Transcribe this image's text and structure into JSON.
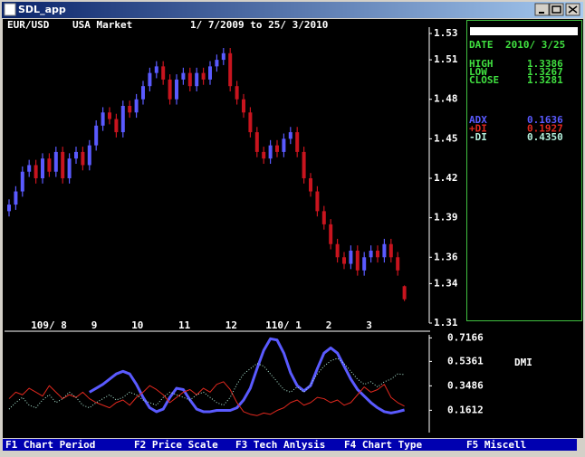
{
  "window": {
    "title": "SDL_app"
  },
  "header": {
    "symbol": "EUR/USD",
    "market": "USA Market",
    "range": "1/ 7/2009 to 25/ 3/2010"
  },
  "info_panel": {
    "date_label": "DATE",
    "date": "2010/ 3/25",
    "prices": [
      {
        "label": "HIGH",
        "value": "1.3386"
      },
      {
        "label": "LOW",
        "value": "1.3267"
      },
      {
        "label": "CLOSE",
        "value": "1.3281"
      }
    ],
    "indicator_values": [
      "0.1636",
      "0.1927",
      "0.4350"
    ]
  },
  "menu": [
    "F1 Chart Period",
    "F2 Price Scale",
    "F3 Tech Anlysis",
    "F4 Chart Type",
    "F5 Miscell"
  ],
  "chart_data": [
    {
      "type": "candlestick",
      "categories": [
        null,
        null,
        null,
        "109/ 8",
        null,
        null,
        null,
        null,
        null,
        null,
        null,
        null,
        "9",
        null,
        null,
        null,
        null,
        null,
        "10",
        null,
        null,
        null,
        null,
        null,
        null,
        "11",
        null,
        null,
        null,
        null,
        null,
        null,
        "12",
        null,
        null,
        null,
        null,
        null,
        "110/ 1",
        null,
        null,
        null,
        null,
        null,
        null,
        null,
        null,
        "2",
        null,
        null,
        null,
        null,
        null,
        "3",
        null,
        null,
        null,
        null,
        null,
        null
      ],
      "open": [
        1.395,
        1.4,
        1.41,
        1.425,
        1.43,
        1.42,
        1.435,
        1.425,
        1.44,
        1.42,
        1.435,
        1.44,
        1.43,
        1.445,
        1.46,
        1.47,
        1.465,
        1.455,
        1.475,
        1.47,
        1.48,
        1.49,
        1.5,
        1.505,
        1.495,
        1.48,
        1.495,
        1.5,
        1.49,
        1.5,
        1.495,
        1.505,
        1.51,
        1.515,
        1.49,
        1.48,
        1.47,
        1.455,
        1.44,
        1.435,
        1.445,
        1.44,
        1.45,
        1.455,
        1.44,
        1.42,
        1.41,
        1.395,
        1.385,
        1.37,
        1.36,
        1.355,
        1.365,
        1.35,
        1.36,
        1.365,
        1.36,
        1.37,
        1.36,
        1.338
      ],
      "high": [
        1.404,
        1.414,
        1.429,
        1.434,
        1.434,
        1.439,
        1.439,
        1.444,
        1.444,
        1.439,
        1.444,
        1.444,
        1.449,
        1.464,
        1.474,
        1.474,
        1.469,
        1.479,
        1.479,
        1.484,
        1.494,
        1.504,
        1.509,
        1.509,
        1.499,
        1.499,
        1.504,
        1.504,
        1.504,
        1.504,
        1.509,
        1.514,
        1.519,
        1.519,
        1.494,
        1.484,
        1.474,
        1.459,
        1.444,
        1.449,
        1.449,
        1.454,
        1.459,
        1.459,
        1.444,
        1.424,
        1.414,
        1.399,
        1.389,
        1.374,
        1.364,
        1.369,
        1.369,
        1.364,
        1.369,
        1.369,
        1.374,
        1.374,
        1.364,
        1.3386
      ],
      "low": [
        1.391,
        1.396,
        1.406,
        1.421,
        1.416,
        1.416,
        1.421,
        1.421,
        1.416,
        1.416,
        1.431,
        1.426,
        1.426,
        1.441,
        1.456,
        1.461,
        1.451,
        1.451,
        1.466,
        1.466,
        1.476,
        1.486,
        1.496,
        1.491,
        1.476,
        1.476,
        1.491,
        1.486,
        1.486,
        1.491,
        1.491,
        1.501,
        1.506,
        1.486,
        1.476,
        1.466,
        1.451,
        1.436,
        1.431,
        1.431,
        1.436,
        1.436,
        1.446,
        1.436,
        1.416,
        1.406,
        1.391,
        1.381,
        1.366,
        1.356,
        1.351,
        1.351,
        1.346,
        1.346,
        1.356,
        1.356,
        1.356,
        1.356,
        1.346,
        1.3267
      ],
      "close": [
        1.4,
        1.41,
        1.425,
        1.43,
        1.42,
        1.435,
        1.425,
        1.44,
        1.42,
        1.435,
        1.44,
        1.43,
        1.445,
        1.46,
        1.47,
        1.465,
        1.455,
        1.475,
        1.47,
        1.48,
        1.49,
        1.5,
        1.505,
        1.495,
        1.48,
        1.495,
        1.5,
        1.49,
        1.5,
        1.495,
        1.505,
        1.51,
        1.515,
        1.49,
        1.48,
        1.47,
        1.455,
        1.44,
        1.435,
        1.445,
        1.44,
        1.45,
        1.455,
        1.44,
        1.42,
        1.41,
        1.395,
        1.385,
        1.37,
        1.36,
        1.355,
        1.365,
        1.35,
        1.36,
        1.365,
        1.36,
        1.37,
        1.36,
        1.35,
        1.3281
      ],
      "up_color": "#5a5aff",
      "down_color": "#c8141e",
      "ylim": [
        1.31,
        1.53
      ],
      "yticks": [
        1.31,
        1.34,
        1.36,
        1.39,
        1.42,
        1.45,
        1.48,
        1.51,
        1.53
      ]
    },
    {
      "type": "line",
      "title": "DMI",
      "ylim": [
        -0.01,
        0.74
      ],
      "yticks": [
        0.1612,
        0.3486,
        0.5361,
        0.7166
      ],
      "series": [
        {
          "name": "ADX",
          "color": "#5a5aff",
          "line_width": 3,
          "line_style": "solid",
          "values": [
            null,
            null,
            null,
            null,
            null,
            null,
            null,
            null,
            null,
            null,
            null,
            null,
            0.3,
            0.33,
            0.36,
            0.4,
            0.44,
            0.46,
            0.44,
            0.36,
            0.26,
            0.18,
            0.15,
            0.17,
            0.26,
            0.33,
            0.32,
            0.24,
            0.17,
            0.15,
            0.15,
            0.16,
            0.16,
            0.16,
            0.18,
            0.24,
            0.33,
            0.48,
            0.62,
            0.71,
            0.7,
            0.6,
            0.45,
            0.35,
            0.31,
            0.35,
            0.48,
            0.6,
            0.64,
            0.6,
            0.5,
            0.4,
            0.32,
            0.27,
            0.22,
            0.18,
            0.15,
            0.14,
            0.15,
            0.1636
          ]
        },
        {
          "name": "+DI",
          "color": "#e0281e",
          "line_width": 1,
          "line_style": "solid",
          "values": [
            0.25,
            0.3,
            0.28,
            0.33,
            0.3,
            0.27,
            0.35,
            0.3,
            0.25,
            0.28,
            0.26,
            0.3,
            0.25,
            0.22,
            0.2,
            0.18,
            0.22,
            0.24,
            0.2,
            0.26,
            0.3,
            0.35,
            0.32,
            0.28,
            0.22,
            0.26,
            0.3,
            0.32,
            0.28,
            0.33,
            0.3,
            0.36,
            0.38,
            0.32,
            0.22,
            0.15,
            0.13,
            0.12,
            0.14,
            0.13,
            0.16,
            0.18,
            0.22,
            0.24,
            0.2,
            0.22,
            0.26,
            0.25,
            0.22,
            0.24,
            0.2,
            0.22,
            0.28,
            0.34,
            0.3,
            0.32,
            0.36,
            0.26,
            0.22,
            0.1927
          ]
        },
        {
          "name": "-DI",
          "color": "#b4f0dc",
          "line_width": 1,
          "line_style": "dotted",
          "values": [
            0.17,
            0.22,
            0.26,
            0.2,
            0.18,
            0.24,
            0.28,
            0.22,
            0.25,
            0.3,
            0.26,
            0.2,
            0.18,
            0.22,
            0.25,
            0.28,
            0.24,
            0.26,
            0.3,
            0.28,
            0.24,
            0.22,
            0.2,
            0.26,
            0.3,
            0.28,
            0.26,
            0.24,
            0.28,
            0.3,
            0.26,
            0.22,
            0.2,
            0.26,
            0.36,
            0.44,
            0.48,
            0.52,
            0.5,
            0.44,
            0.38,
            0.32,
            0.3,
            0.34,
            0.3,
            0.36,
            0.44,
            0.5,
            0.54,
            0.56,
            0.52,
            0.46,
            0.4,
            0.36,
            0.38,
            0.34,
            0.38,
            0.4,
            0.44,
            0.435
          ]
        }
      ]
    }
  ]
}
